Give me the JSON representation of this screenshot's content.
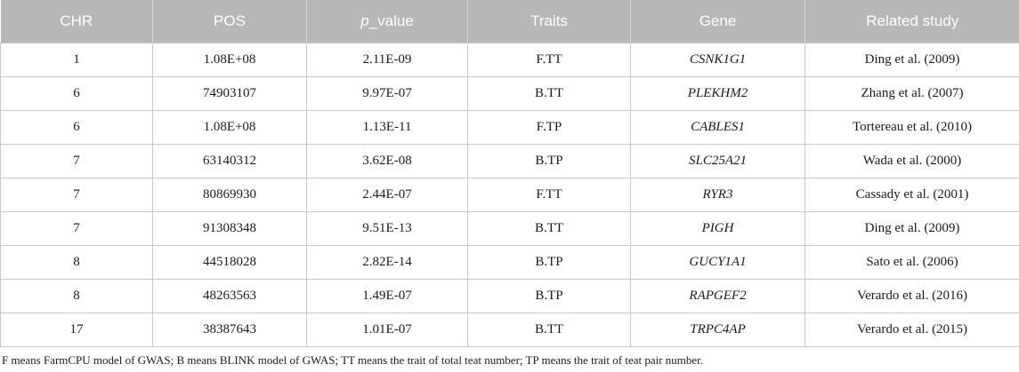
{
  "table": {
    "headers": {
      "chr": "CHR",
      "pos": "POS",
      "pvalue_italic": "p",
      "pvalue_rest": "_value",
      "traits": "Traits",
      "gene": "Gene",
      "study": "Related study"
    },
    "rows": [
      {
        "chr": "1",
        "pos": "1.08E+08",
        "pvalue": "2.11E-09",
        "traits": "F.TT",
        "gene": "CSNK1G1",
        "study": "Ding et al. (2009)"
      },
      {
        "chr": "6",
        "pos": "74903107",
        "pvalue": "9.97E-07",
        "traits": "B.TT",
        "gene": "PLEKHM2",
        "study": "Zhang et al. (2007)"
      },
      {
        "chr": "6",
        "pos": "1.08E+08",
        "pvalue": "1.13E-11",
        "traits": "F.TP",
        "gene": "CABLES1",
        "study": "Tortereau et al. (2010)"
      },
      {
        "chr": "7",
        "pos": "63140312",
        "pvalue": "3.62E-08",
        "traits": "B.TP",
        "gene": "SLC25A21",
        "study": "Wada et al. (2000)"
      },
      {
        "chr": "7",
        "pos": "80869930",
        "pvalue": "2.44E-07",
        "traits": "F.TT",
        "gene": "RYR3",
        "study": "Cassady et al. (2001)"
      },
      {
        "chr": "7",
        "pos": "91308348",
        "pvalue": "9.51E-13",
        "traits": "B.TT",
        "gene": "PIGH",
        "study": "Ding et al. (2009)"
      },
      {
        "chr": "8",
        "pos": "44518028",
        "pvalue": "2.82E-14",
        "traits": "B.TP",
        "gene": "GUCY1A1",
        "study": "Sato et al. (2006)"
      },
      {
        "chr": "8",
        "pos": "48263563",
        "pvalue": "1.49E-07",
        "traits": "B.TP",
        "gene": "RAPGEF2",
        "study": "Verardo et al. (2016)"
      },
      {
        "chr": "17",
        "pos": "38387643",
        "pvalue": "1.01E-07",
        "traits": "B.TT",
        "gene": "TRPC4AP",
        "study": "Verardo et al. (2015)"
      }
    ]
  },
  "footnote": "F means FarmCPU model of GWAS; B means BLINK model of GWAS; TT means the trait of total teat number; TP means the trait of teat pair number.",
  "colors": {
    "header_bg": "#b7b7b7",
    "header_text": "#ffffff",
    "grid": "#c8c8c8"
  }
}
